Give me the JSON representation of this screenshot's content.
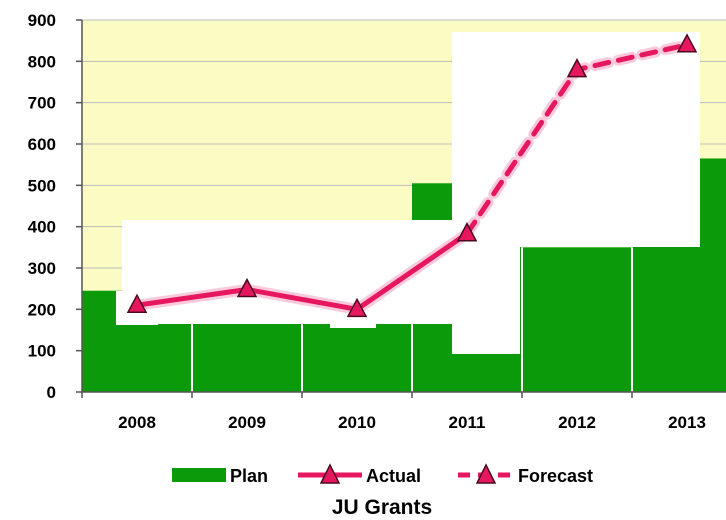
{
  "chart_data": {
    "type": "bar",
    "title": "JU Grants",
    "xlabel": "",
    "ylabel": "",
    "categories": [
      "2008",
      "2009",
      "2010",
      "2011",
      "2012",
      "2013"
    ],
    "ylim": [
      0,
      900
    ],
    "yticks": [
      0,
      100,
      200,
      300,
      400,
      500,
      600,
      700,
      800,
      900
    ],
    "grid": true,
    "legend": "bottom",
    "series": [
      {
        "name": "Plan",
        "kind": "bar",
        "color": "#0a9a0a",
        "values": [
          245,
          165,
          165,
          505,
          350,
          565
        ]
      },
      {
        "name": "Actual",
        "kind": "line",
        "line_style": "solid",
        "color": "#e6175f",
        "marker_color": "#e6175f",
        "values": [
          210,
          248,
          200,
          383,
          null,
          null
        ]
      },
      {
        "name": "Forecast",
        "kind": "line",
        "line_style": "dashed",
        "color": "#e6175f",
        "marker_color": "#e6175f",
        "values": [
          null,
          null,
          null,
          383,
          780,
          840
        ]
      }
    ]
  }
}
